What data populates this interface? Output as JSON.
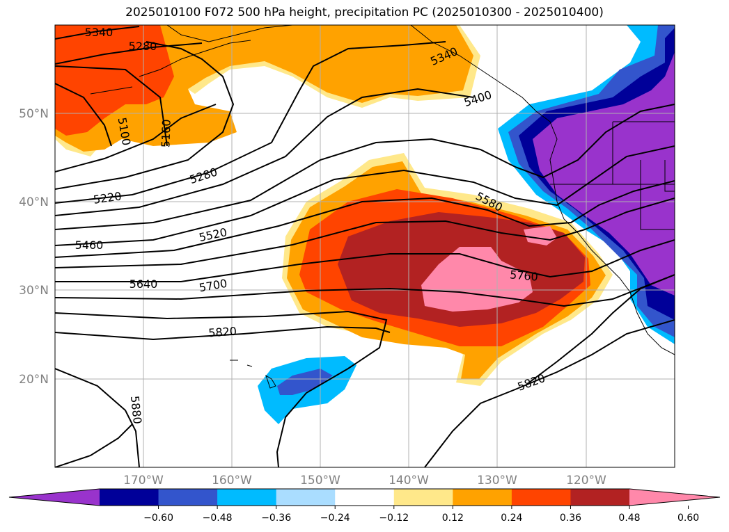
{
  "title": "2025010100 F072 500 hPa height, precipitation PC (2025010300 - 2025010400)",
  "map": {
    "lon_labels": [
      "170°W",
      "160°W",
      "150°W",
      "140°W",
      "130°W",
      "120°W"
    ],
    "lat_labels": [
      "50°N",
      "40°N",
      "30°N",
      "20°N"
    ],
    "contour_labels": [
      "5340",
      "5280",
      "5100",
      "5160",
      "5280",
      "5220",
      "5460",
      "5520",
      "5640",
      "5700",
      "5820",
      "5880",
      "5340",
      "5400",
      "5580",
      "5760",
      "5820"
    ]
  },
  "colorbar": {
    "colors": [
      "#9933cc",
      "#000099",
      "#3355cc",
      "#00bbff",
      "#aaddff",
      "#ffffff",
      "#ffe88a",
      "#ffa200",
      "#ff4400",
      "#b22222",
      "#ff88aa"
    ],
    "tick_labels": [
      "−0.60",
      "−0.48",
      "−0.36",
      "−0.24",
      "−0.12",
      "0.12",
      "0.24",
      "0.36",
      "0.48",
      "0.60"
    ]
  }
}
